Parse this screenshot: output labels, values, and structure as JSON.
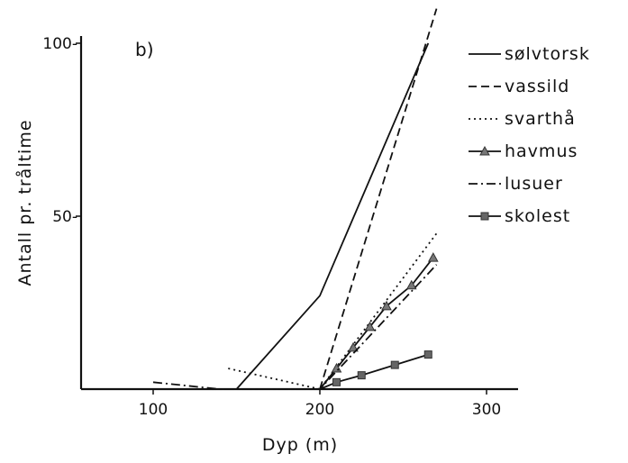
{
  "chart_data": {
    "type": "line",
    "panel_label": "b)",
    "xlabel": "Dyp (m)",
    "ylabel": "Antall pr. tråltime",
    "xlim": [
      60,
      330
    ],
    "ylim": [
      0,
      105
    ],
    "xticks": [
      100,
      200,
      300
    ],
    "yticks": [
      50,
      100
    ],
    "xtick_labels": [
      "100",
      "200",
      "300"
    ],
    "ytick_labels": [
      "50-",
      "100-"
    ],
    "legend_position": "right",
    "grid": false,
    "series": [
      {
        "name": "sølvtorsk",
        "style": "solid",
        "marker": "none",
        "x": [
          150,
          200,
          265
        ],
        "y": [
          0,
          27,
          100
        ]
      },
      {
        "name": "vassild",
        "style": "dashed",
        "marker": "none",
        "x": [
          200,
          270
        ],
        "y": [
          0,
          110
        ]
      },
      {
        "name": "svarthå",
        "style": "dotted",
        "marker": "none",
        "x": [
          145,
          200,
          270
        ],
        "y": [
          6,
          0,
          45
        ]
      },
      {
        "name": "havmus",
        "style": "solid",
        "marker": "triangle",
        "x": [
          200,
          210,
          220,
          230,
          240,
          255,
          268
        ],
        "y": [
          0,
          6,
          12,
          18,
          24,
          30,
          38
        ]
      },
      {
        "name": "lusuer",
        "style": "dashdot",
        "marker": "none",
        "x": [
          100,
          140,
          200,
          270
        ],
        "y": [
          2,
          0,
          0,
          36
        ]
      },
      {
        "name": "skolest",
        "style": "solid",
        "marker": "square",
        "x": [
          200,
          210,
          225,
          245,
          265
        ],
        "y": [
          0,
          2,
          4,
          7,
          10
        ]
      }
    ]
  }
}
